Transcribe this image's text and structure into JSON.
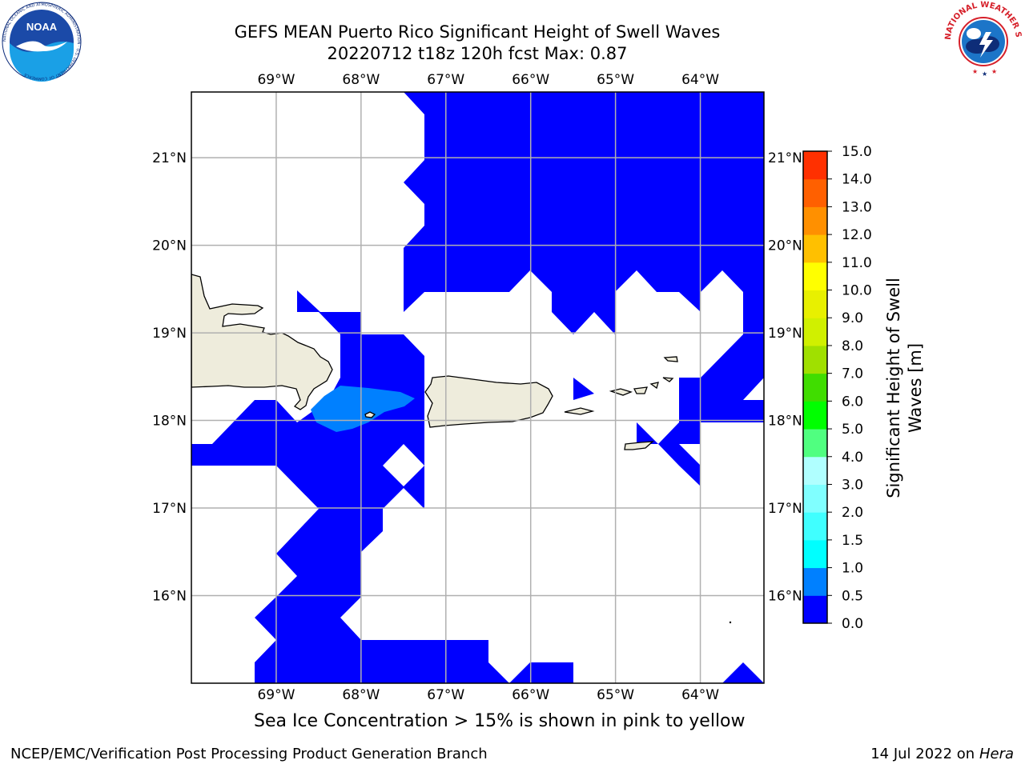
{
  "title": {
    "line1": "GEFS MEAN Puerto Rico Significant Height of Swell Waves",
    "line2": "20220712 t18z 120h fcst   Max: 0.87"
  },
  "logos": {
    "left": {
      "name": "NOAA",
      "text": "NOAA",
      "ring_text": "NATIONAL OCEANIC AND ATMOSPHERIC ADMINISTRATION · U.S. DEPARTMENT OF COMMERCE"
    },
    "right": {
      "name": "National Weather Service",
      "ring_text": "NATIONAL WEATHER SERVICE"
    }
  },
  "map": {
    "projection": "Plate Carree",
    "lon_range": [
      -70.0,
      -63.25
    ],
    "lat_range": [
      15.0,
      21.75
    ],
    "lon_ticks": [
      {
        "value": -69,
        "label": "69°W"
      },
      {
        "value": -68,
        "label": "68°W"
      },
      {
        "value": -67,
        "label": "67°W"
      },
      {
        "value": -66,
        "label": "66°W"
      },
      {
        "value": -65,
        "label": "65°W"
      },
      {
        "value": -64,
        "label": "64°W"
      }
    ],
    "lat_ticks": [
      {
        "value": 21,
        "label": "21°N"
      },
      {
        "value": 20,
        "label": "20°N"
      },
      {
        "value": 19,
        "label": "19°N"
      },
      {
        "value": 18,
        "label": "18°N"
      },
      {
        "value": 17,
        "label": "17°N"
      },
      {
        "value": 16,
        "label": "16°N"
      }
    ],
    "grid": true,
    "colors": {
      "land": "#eeecdc",
      "coast": "#000000",
      "grid": "#b0b0b0",
      "swell_0_0_5": "#0000ff",
      "swell_0_5_1_0": "#0080ff"
    }
  },
  "colorbar": {
    "label": "Significant Height of Swell Waves [m]",
    "label_line1": "Significant Height of Swell",
    "label_line2": "Waves [m]",
    "levels": [
      "0.0",
      "0.5",
      "1.0",
      "1.5",
      "2.0",
      "3.0",
      "4.0",
      "5.0",
      "6.0",
      "7.0",
      "8.0",
      "9.0",
      "10.0",
      "11.0",
      "12.0",
      "13.0",
      "14.0",
      "15.0"
    ],
    "colors": [
      "#0000ff",
      "#0080ff",
      "#00ffff",
      "#40ffff",
      "#80ffff",
      "#b0ffff",
      "#50ff80",
      "#00ff00",
      "#40dd00",
      "#a0e000",
      "#d0f000",
      "#e8f000",
      "#ffff00",
      "#ffc000",
      "#ff9000",
      "#ff6000",
      "#ff3000",
      "#ff0000"
    ]
  },
  "footer": {
    "note": "Sea Ice Concentration > 15% is shown in pink to yellow",
    "credit": "NCEP/EMC/Verification Post Processing Product Generation Branch",
    "date": "14 Jul 2022 on ",
    "machine": "Hera"
  }
}
